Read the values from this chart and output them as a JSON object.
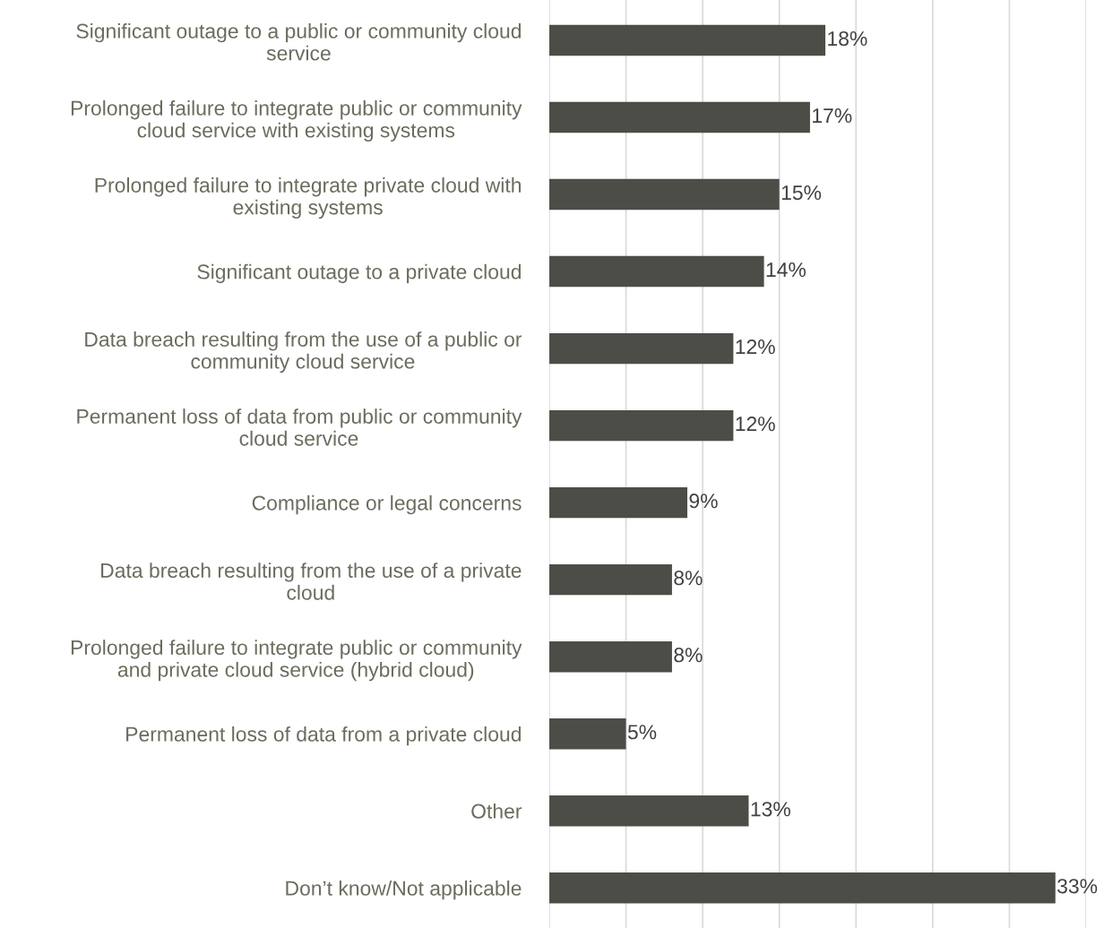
{
  "chart_data": {
    "type": "bar",
    "orientation": "horizontal",
    "categories": [
      "Significant outage to a public or community cloud\nservice",
      "Prolonged failure to integrate public or community\ncloud service with existing systems",
      "Prolonged failure to integrate private cloud with\nexisting systems",
      "Significant outage to a private cloud",
      "Data breach resulting from the use of a public or\ncommunity cloud service",
      "Permanent loss of data from public or community\ncloud service",
      "Compliance or legal concerns",
      "Data breach resulting from the use of a private\ncloud",
      "Prolonged failure to integrate public or community\nand private cloud service (hybrid cloud)",
      "Permanent loss of data from a private cloud",
      "Other",
      "Don’t know/Not applicable"
    ],
    "values": [
      18,
      17,
      15,
      14,
      12,
      12,
      9,
      8,
      8,
      5,
      13,
      33
    ],
    "value_labels": [
      "18%",
      "17%",
      "15%",
      "14%",
      "12%",
      "12%",
      "9%",
      "8%",
      "8%",
      "5%",
      "13%",
      "33%"
    ],
    "color": "#4d4d48",
    "xlim": [
      0,
      35
    ],
    "xticks": [
      {
        "value": 0,
        "label": null
      },
      {
        "value": 5,
        "label": null
      },
      {
        "value": 10,
        "label": null
      },
      {
        "value": 15,
        "label": null
      },
      {
        "value": 20,
        "label": null
      },
      {
        "value": 25,
        "label": null
      },
      {
        "value": 30,
        "label": null
      },
      {
        "value": 35,
        "label": null
      }
    ],
    "grid": "x",
    "tick_labels": "y"
  }
}
